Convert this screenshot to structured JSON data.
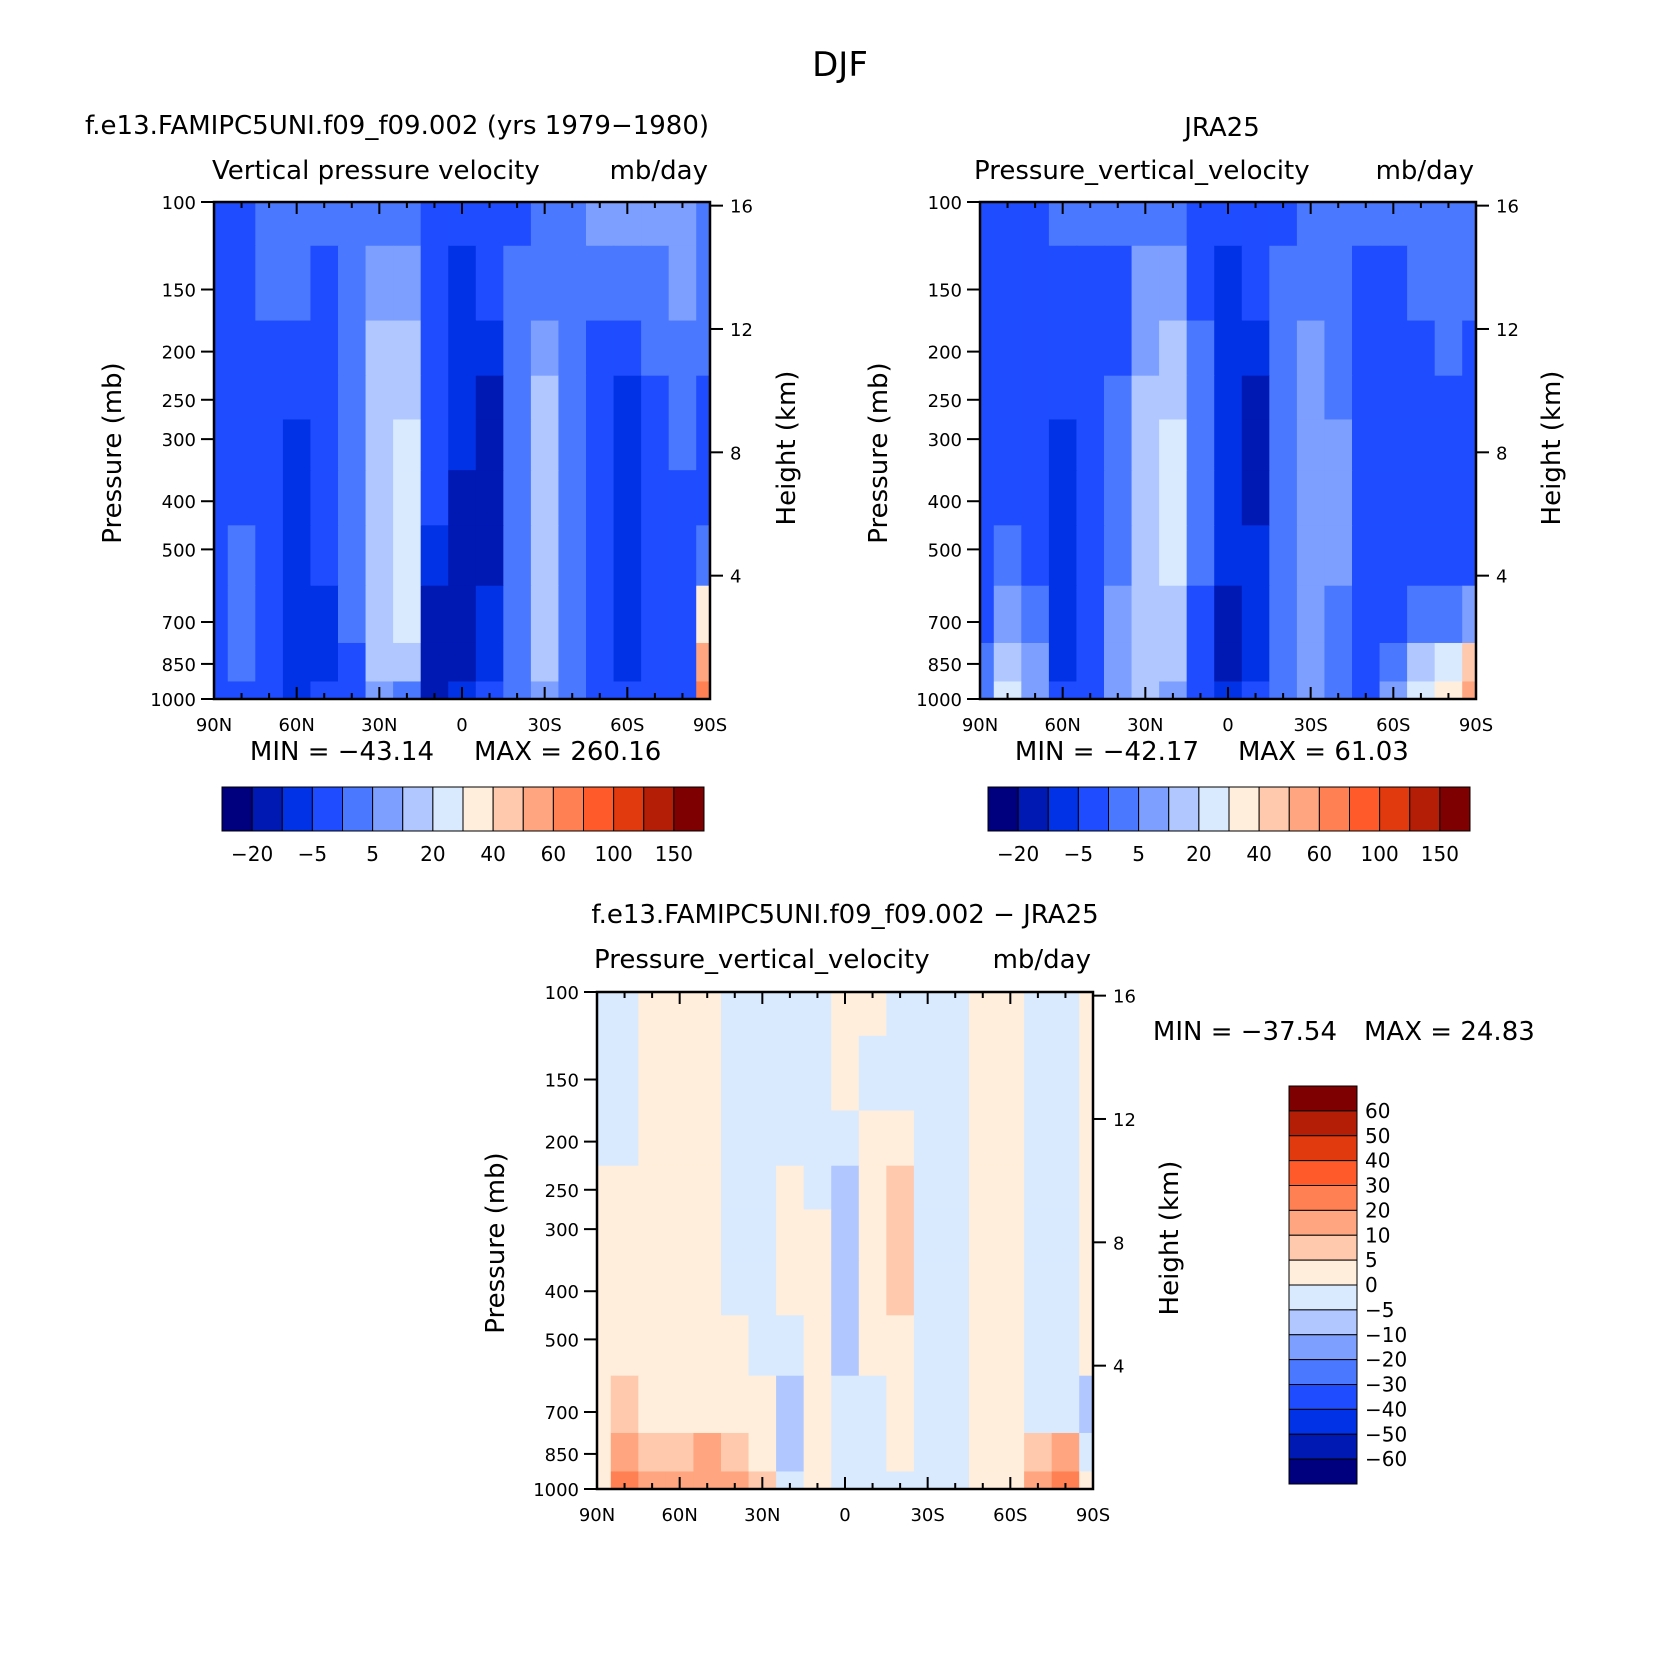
{
  "figure": {
    "title": "DJF"
  },
  "chart_data": [
    {
      "type": "heatmap",
      "case_title": "f.e13.FAMIPC5UNI.f09_f09.002 (yrs 1979−1980)",
      "title": "Vertical pressure velocity",
      "units": "mb/day",
      "ylabel": "Pressure (mb)",
      "ylabel_right": "Height (km)",
      "x_ticks": [
        "90N",
        "60N",
        "30N",
        "0",
        "30S",
        "60S",
        "90S"
      ],
      "y_ticks": [
        "100",
        "150",
        "200",
        "250",
        "300",
        "400",
        "500",
        "700",
        "850",
        "1000"
      ],
      "right_ticks": [
        "16",
        "12",
        "8",
        "4"
      ],
      "x_range": [
        90,
        -90
      ],
      "y_range": [
        1000,
        100
      ],
      "min_label": "MIN = −43.14",
      "max_label": "MAX = 260.16",
      "colorbar_labels": [
        "−20",
        "−5",
        "5",
        "20",
        "40",
        "60",
        "100",
        "150"
      ],
      "colorbar_colors": [
        "#00007f",
        "#0019b3",
        "#0232e6",
        "#1f4cff",
        "#4a78ff",
        "#7d9fff",
        "#b0c8ff",
        "#d9eaff",
        "#ffeedb",
        "#ffc9ad",
        "#ffa57f",
        "#ff8052",
        "#ff5a29",
        "#e03a0e",
        "#b41d06",
        "#7f0000"
      ],
      "field": {
        "lat": [
          90,
          80,
          70,
          60,
          50,
          40,
          30,
          20,
          10,
          0,
          -10,
          -20,
          -30,
          -40,
          -50,
          -60,
          -70,
          -80,
          -90
        ],
        "plev": [
          100,
          150,
          200,
          250,
          300,
          400,
          500,
          700,
          850,
          1000
        ],
        "class_index": [
          [
            3,
            3,
            4,
            4,
            4,
            4,
            4,
            4,
            3,
            3,
            3,
            3,
            4,
            4,
            5,
            5,
            5,
            5,
            4
          ],
          [
            3,
            3,
            4,
            4,
            3,
            4,
            5,
            5,
            3,
            2,
            3,
            4,
            4,
            4,
            4,
            4,
            4,
            5,
            4
          ],
          [
            3,
            3,
            3,
            3,
            3,
            4,
            6,
            6,
            3,
            2,
            2,
            4,
            5,
            4,
            3,
            3,
            4,
            4,
            4
          ],
          [
            3,
            3,
            3,
            3,
            3,
            4,
            6,
            6,
            3,
            2,
            1,
            4,
            6,
            4,
            3,
            2,
            3,
            4,
            3
          ],
          [
            3,
            3,
            3,
            2,
            3,
            4,
            6,
            7,
            3,
            2,
            1,
            4,
            6,
            4,
            3,
            2,
            3,
            4,
            3
          ],
          [
            3,
            3,
            3,
            2,
            3,
            4,
            6,
            7,
            3,
            1,
            1,
            4,
            6,
            4,
            3,
            2,
            3,
            3,
            3
          ],
          [
            3,
            4,
            3,
            2,
            3,
            4,
            6,
            7,
            2,
            1,
            1,
            4,
            6,
            4,
            3,
            2,
            3,
            3,
            4
          ],
          [
            3,
            4,
            3,
            2,
            2,
            4,
            6,
            7,
            1,
            1,
            2,
            4,
            6,
            4,
            3,
            2,
            3,
            3,
            8
          ],
          [
            3,
            4,
            3,
            2,
            2,
            3,
            6,
            6,
            1,
            1,
            2,
            4,
            6,
            4,
            3,
            2,
            3,
            3,
            10
          ],
          [
            3,
            3,
            3,
            2,
            3,
            3,
            5,
            4,
            1,
            2,
            3,
            4,
            5,
            4,
            3,
            3,
            3,
            3,
            11
          ]
        ]
      }
    },
    {
      "type": "heatmap",
      "case_title": "JRA25",
      "title": "Pressure_vertical_velocity",
      "units": "mb/day",
      "ylabel": "Pressure (mb)",
      "ylabel_right": "Height (km)",
      "x_ticks": [
        "90N",
        "60N",
        "30N",
        "0",
        "30S",
        "60S",
        "90S"
      ],
      "y_ticks": [
        "100",
        "150",
        "200",
        "250",
        "300",
        "400",
        "500",
        "700",
        "850",
        "1000"
      ],
      "right_ticks": [
        "16",
        "12",
        "8",
        "4"
      ],
      "x_range": [
        90,
        -90
      ],
      "y_range": [
        1000,
        100
      ],
      "min_label": "MIN = −42.17",
      "max_label": "MAX =   61.03",
      "colorbar_labels": [
        "−20",
        "−5",
        "5",
        "20",
        "40",
        "60",
        "100",
        "150"
      ],
      "colorbar_colors": [
        "#00007f",
        "#0019b3",
        "#0232e6",
        "#1f4cff",
        "#4a78ff",
        "#7d9fff",
        "#b0c8ff",
        "#d9eaff",
        "#ffeedb",
        "#ffc9ad",
        "#ffa57f",
        "#ff8052",
        "#ff5a29",
        "#e03a0e",
        "#b41d06",
        "#7f0000"
      ],
      "field": {
        "lat": [
          90,
          80,
          70,
          60,
          50,
          40,
          30,
          20,
          10,
          0,
          -10,
          -20,
          -30,
          -40,
          -50,
          -60,
          -70,
          -80,
          -90
        ],
        "plev": [
          100,
          150,
          200,
          250,
          300,
          400,
          500,
          700,
          850,
          1000
        ],
        "class_index": [
          [
            3,
            3,
            3,
            4,
            4,
            4,
            4,
            4,
            3,
            3,
            3,
            3,
            4,
            4,
            4,
            4,
            4,
            4,
            4
          ],
          [
            3,
            3,
            3,
            3,
            3,
            3,
            5,
            5,
            3,
            2,
            3,
            4,
            4,
            4,
            3,
            3,
            4,
            4,
            4
          ],
          [
            3,
            3,
            3,
            3,
            3,
            3,
            5,
            6,
            4,
            2,
            2,
            4,
            5,
            4,
            3,
            3,
            3,
            4,
            3
          ],
          [
            3,
            3,
            3,
            3,
            3,
            4,
            6,
            6,
            4,
            2,
            1,
            4,
            5,
            4,
            3,
            3,
            3,
            3,
            3
          ],
          [
            3,
            3,
            3,
            2,
            3,
            4,
            6,
            7,
            4,
            2,
            1,
            4,
            5,
            5,
            3,
            3,
            3,
            3,
            3
          ],
          [
            3,
            3,
            3,
            2,
            3,
            4,
            6,
            7,
            4,
            2,
            1,
            4,
            5,
            5,
            3,
            3,
            3,
            3,
            3
          ],
          [
            3,
            4,
            3,
            2,
            3,
            4,
            6,
            7,
            4,
            2,
            2,
            4,
            5,
            5,
            3,
            3,
            3,
            3,
            3
          ],
          [
            3,
            5,
            4,
            2,
            3,
            5,
            6,
            6,
            3,
            1,
            2,
            4,
            5,
            4,
            3,
            3,
            4,
            4,
            5
          ],
          [
            4,
            6,
            5,
            2,
            3,
            5,
            6,
            6,
            3,
            1,
            2,
            4,
            5,
            4,
            3,
            4,
            6,
            7,
            9
          ],
          [
            4,
            7,
            5,
            3,
            3,
            5,
            6,
            5,
            3,
            2,
            3,
            4,
            5,
            4,
            3,
            5,
            7,
            8,
            10
          ]
        ]
      }
    },
    {
      "type": "heatmap",
      "case_title": "f.e13.FAMIPC5UNI.f09_f09.002 − JRA25",
      "title": "Pressure_vertical_velocity",
      "units": "mb/day",
      "ylabel": "Pressure (mb)",
      "ylabel_right": "Height (km)",
      "x_ticks": [
        "90N",
        "60N",
        "30N",
        "0",
        "30S",
        "60S",
        "90S"
      ],
      "y_ticks": [
        "100",
        "150",
        "200",
        "250",
        "300",
        "400",
        "500",
        "700",
        "850",
        "1000"
      ],
      "right_ticks": [
        "16",
        "12",
        "8",
        "4"
      ],
      "x_range": [
        90,
        -90
      ],
      "y_range": [
        1000,
        100
      ],
      "min_label": "MIN = −37.54",
      "max_label": "MAX =   24.83",
      "colorbar_labels": [
        "60",
        "50",
        "40",
        "30",
        "20",
        "10",
        "5",
        "0",
        "−5",
        "−10",
        "−20",
        "−30",
        "−40",
        "−50",
        "−60"
      ],
      "colorbar_colors": [
        "#7f0000",
        "#b41d06",
        "#e03a0e",
        "#ff5a29",
        "#ff8052",
        "#ffa57f",
        "#ffc9ad",
        "#ffeedb",
        "#d9eaff",
        "#b0c8ff",
        "#7d9fff",
        "#4a78ff",
        "#1f4cff",
        "#0232e6",
        "#0019b3",
        "#00007f"
      ],
      "field": {
        "lat": [
          90,
          80,
          70,
          60,
          50,
          40,
          30,
          20,
          10,
          0,
          -10,
          -20,
          -30,
          -40,
          -50,
          -60,
          -70,
          -80,
          -90
        ],
        "plev": [
          100,
          150,
          200,
          250,
          300,
          400,
          500,
          700,
          850,
          1000
        ],
        "class_index": [
          [
            8,
            8,
            7,
            7,
            7,
            8,
            8,
            8,
            8,
            7,
            7,
            8,
            8,
            8,
            7,
            7,
            8,
            8,
            7
          ],
          [
            8,
            8,
            7,
            7,
            7,
            8,
            8,
            8,
            8,
            7,
            8,
            8,
            8,
            8,
            7,
            7,
            8,
            8,
            7
          ],
          [
            8,
            8,
            7,
            7,
            7,
            8,
            8,
            8,
            8,
            8,
            7,
            7,
            8,
            8,
            7,
            7,
            8,
            8,
            7
          ],
          [
            7,
            7,
            7,
            7,
            7,
            8,
            8,
            7,
            8,
            9,
            7,
            6,
            8,
            8,
            7,
            7,
            8,
            8,
            7
          ],
          [
            7,
            7,
            7,
            7,
            7,
            8,
            8,
            7,
            7,
            9,
            7,
            6,
            8,
            8,
            7,
            7,
            8,
            8,
            7
          ],
          [
            7,
            7,
            7,
            7,
            7,
            8,
            8,
            7,
            7,
            9,
            7,
            6,
            8,
            8,
            7,
            7,
            8,
            8,
            7
          ],
          [
            7,
            7,
            7,
            7,
            7,
            7,
            8,
            8,
            7,
            9,
            7,
            7,
            8,
            8,
            7,
            7,
            8,
            8,
            7
          ],
          [
            7,
            6,
            7,
            7,
            7,
            7,
            7,
            9,
            7,
            8,
            8,
            7,
            8,
            8,
            7,
            7,
            8,
            8,
            9
          ],
          [
            7,
            5,
            6,
            6,
            5,
            6,
            7,
            9,
            7,
            8,
            8,
            7,
            8,
            8,
            7,
            7,
            6,
            5,
            8
          ],
          [
            7,
            4,
            5,
            5,
            5,
            5,
            6,
            8,
            7,
            8,
            8,
            8,
            8,
            8,
            7,
            7,
            5,
            4,
            7
          ]
        ]
      }
    }
  ]
}
